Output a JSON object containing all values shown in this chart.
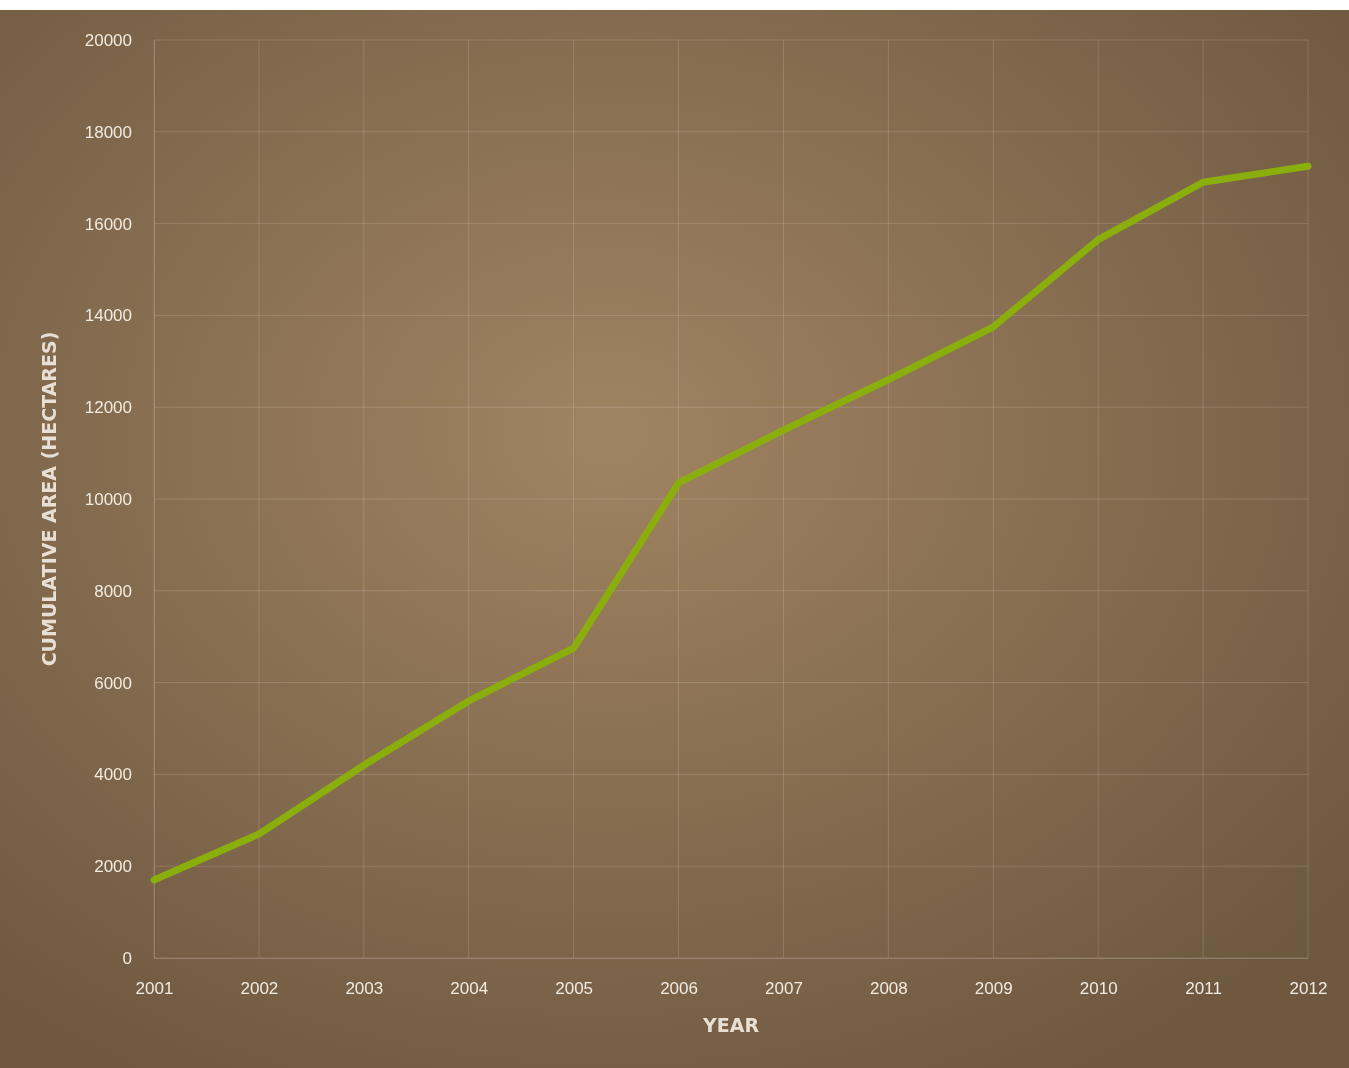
{
  "chart_data": {
    "type": "line",
    "xlabel": "YEAR",
    "ylabel": "CUMULATIVE AREA (HECTARES)",
    "x": [
      2001,
      2002,
      2003,
      2004,
      2005,
      2006,
      2007,
      2008,
      2009,
      2010,
      2011,
      2012
    ],
    "series": [
      {
        "color": "#8aae0c",
        "values": [
          1700,
          2700,
          4200,
          5600,
          6750,
          10350,
          11500,
          12600,
          13750,
          15650,
          16900,
          17250
        ]
      }
    ],
    "xlim": [
      2001,
      2012
    ],
    "xticks": [
      2001,
      2002,
      2003,
      2004,
      2005,
      2006,
      2007,
      2008,
      2009,
      2010,
      2011,
      2012
    ],
    "ylim": [
      0,
      20000
    ],
    "yticks": [
      0,
      2000,
      4000,
      6000,
      8000,
      10000,
      12000,
      14000,
      16000,
      18000,
      20000
    ],
    "grid": true,
    "marker": "none",
    "line_style": "solid"
  }
}
